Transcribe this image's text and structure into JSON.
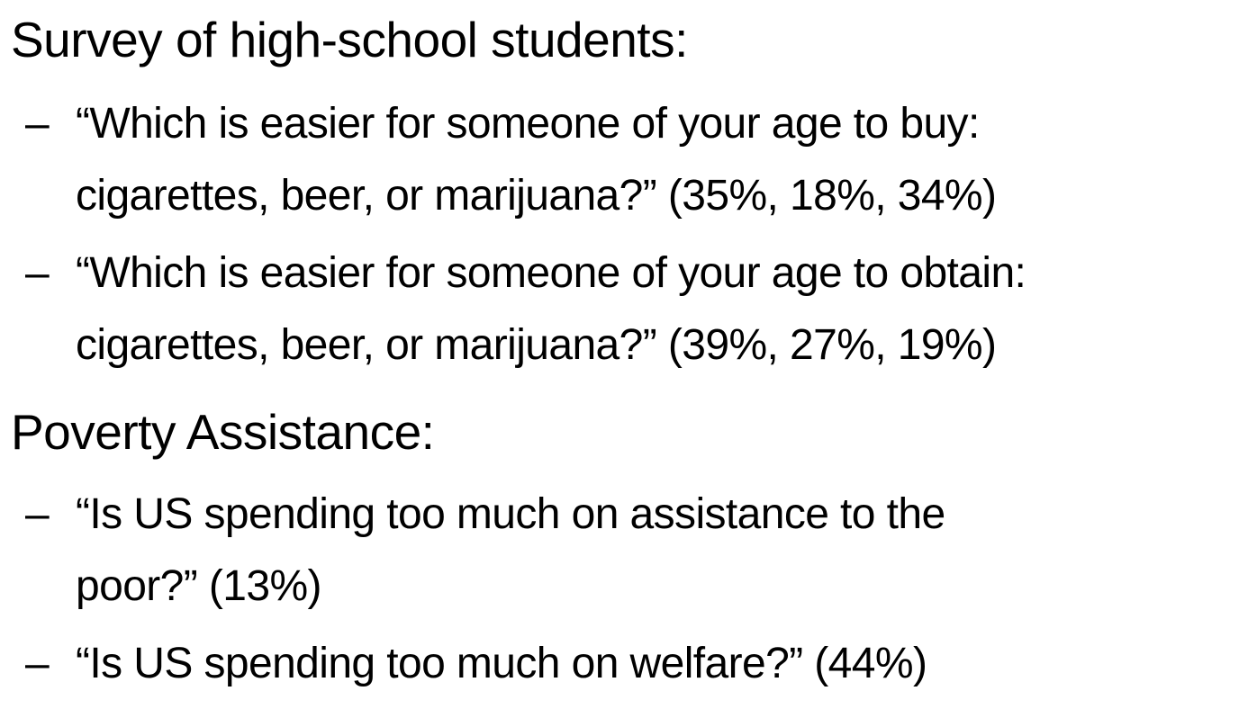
{
  "sections": [
    {
      "heading": "Survey of high-school students:",
      "bullets": [
        {
          "dash": "–",
          "lines": [
            "“Which is easier for someone of your age to buy:",
            "cigarettes, beer, or marijuana?”  (35%, 18%, 34%)"
          ]
        },
        {
          "dash": "–",
          "lines": [
            "“Which is easier for someone of your age to obtain:",
            "cigarettes, beer, or marijuana?” (39%, 27%, 19%)"
          ]
        }
      ]
    },
    {
      "heading": "Poverty Assistance:",
      "bullets": [
        {
          "dash": "–",
          "lines": [
            "“Is US spending too much on assistance to the",
            "poor?” (13%)"
          ]
        },
        {
          "dash": "–",
          "lines": [
            "“Is US spending too much on welfare?” (44%)"
          ]
        }
      ]
    }
  ]
}
